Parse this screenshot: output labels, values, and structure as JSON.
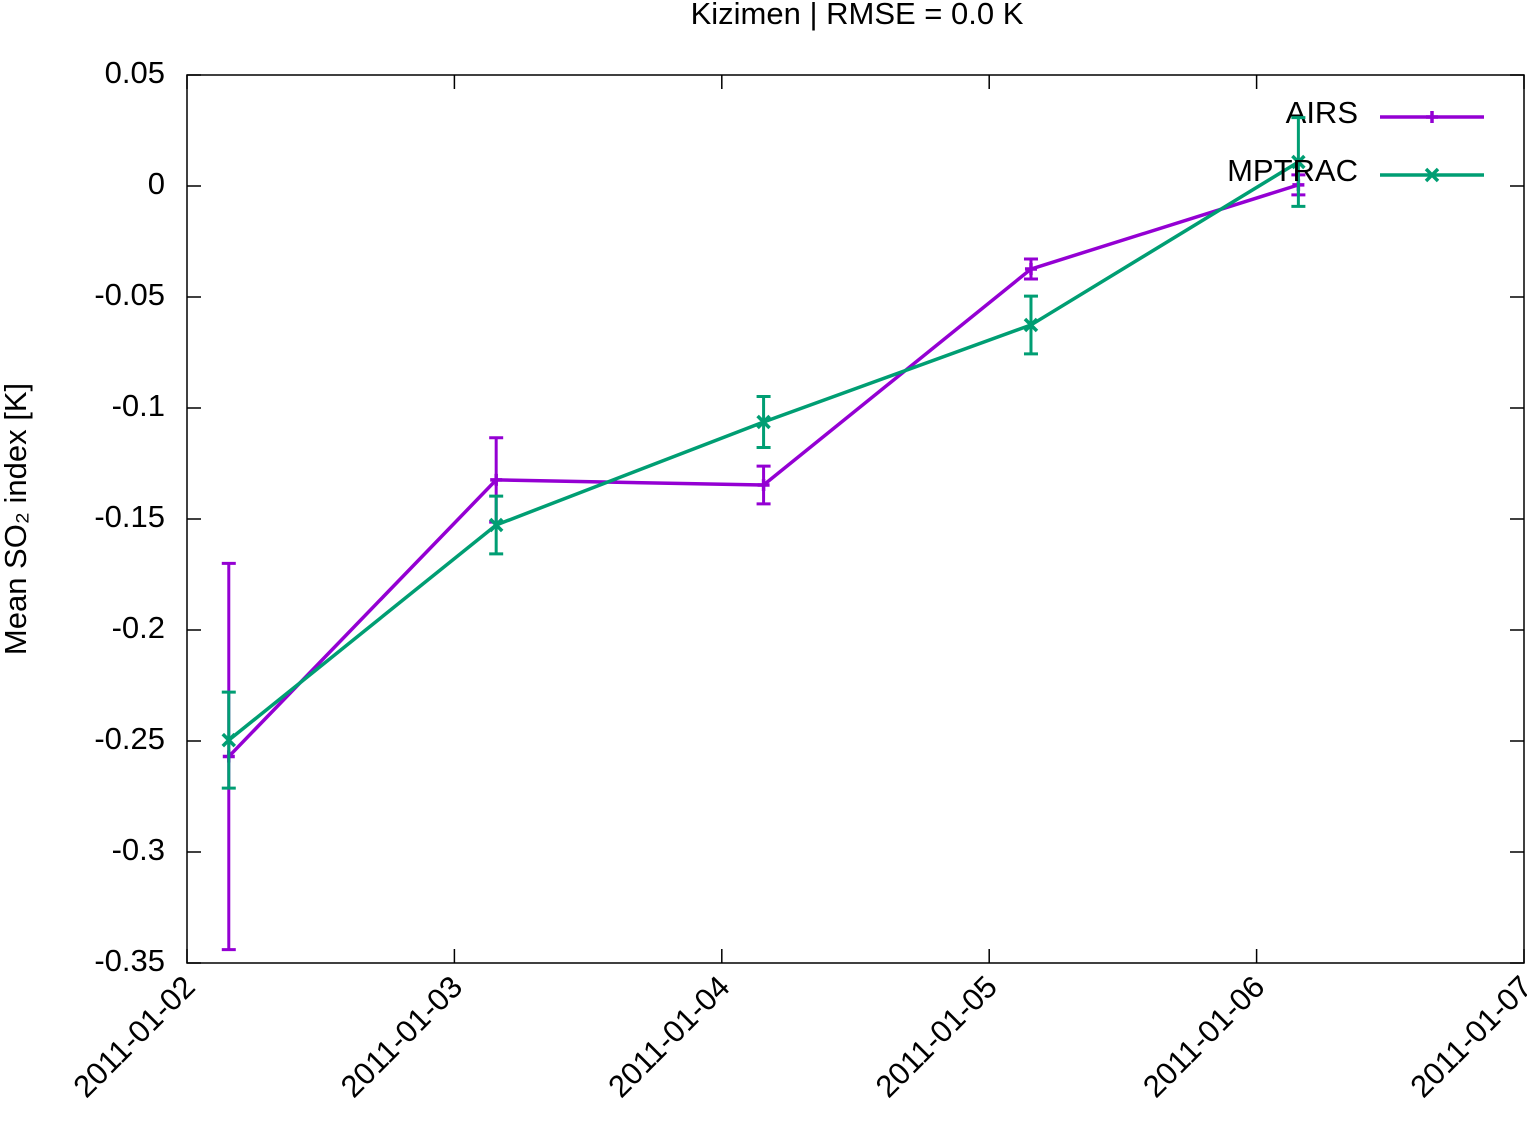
{
  "chart_data": {
    "type": "line",
    "title": "Kizimen | RMSE = 0.0 K",
    "ylabel": "Mean SO₂ index [K]",
    "x": [
      "2011-01-02 03:45",
      "2011-01-03 03:45",
      "2011-01-04 03:45",
      "2011-01-05 03:45",
      "2011-01-06 03:45"
    ],
    "series": [
      {
        "name": "AIRS",
        "color": "#9400d3",
        "marker": "+",
        "values": [
          -0.257,
          -0.1324,
          -0.1347,
          -0.0374,
          0.0005
        ],
        "errors": [
          0.087,
          0.019,
          0.0085,
          0.0045,
          0.0045
        ]
      },
      {
        "name": "MPTRAC",
        "color": "#009e73",
        "marker": "x",
        "values": [
          -0.2496,
          -0.1527,
          -0.1063,
          -0.0626,
          0.0108
        ],
        "errors": [
          0.0216,
          0.013,
          0.0115,
          0.013,
          0.02
        ]
      }
    ],
    "xlim": [
      "2011-01-02",
      "2011-01-07"
    ],
    "xticks": [
      "2011-01-02",
      "2011-01-03",
      "2011-01-04",
      "2011-01-05",
      "2011-01-06",
      "2011-01-07"
    ],
    "ylim": [
      -0.35,
      0.05
    ],
    "yticks": [
      0.05,
      0,
      -0.05,
      -0.1,
      -0.15,
      -0.2,
      -0.25,
      -0.3,
      -0.35
    ],
    "legend": "top-right",
    "grid": false
  }
}
